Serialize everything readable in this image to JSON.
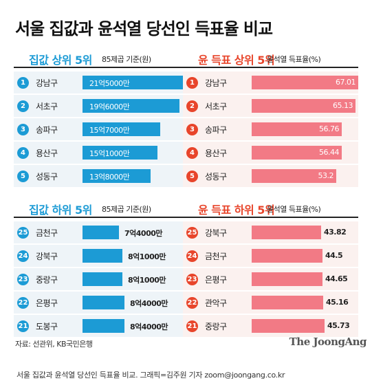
{
  "title": "서울 집값과 윤석열 당선인 득표율 비교",
  "colors": {
    "blue": "#1c9bd5",
    "red": "#e8452b",
    "pink_bar": "#f27a85"
  },
  "chart_data": [
    {
      "type": "bar",
      "title": "집값 상위 5위",
      "unit": "85제곱 기준(원)",
      "categories": [
        "강남구",
        "서초구",
        "송파구",
        "용산구",
        "성동구"
      ],
      "ranks": [
        "1",
        "2",
        "3",
        "4",
        "5"
      ],
      "values": [
        215000,
        196000,
        157000,
        151000,
        138000
      ],
      "value_labels": [
        "21억5000만",
        "19억6000만",
        "15억7000만",
        "15억1000만",
        "13억8000만"
      ],
      "xlim": [
        0,
        215000
      ]
    },
    {
      "type": "bar",
      "title": "윤 득표 상위 5위",
      "unit": "윤석열 득표율(%)",
      "categories": [
        "강남구",
        "서초구",
        "송파구",
        "용산구",
        "성동구"
      ],
      "ranks": [
        "1",
        "2",
        "3",
        "4",
        "5"
      ],
      "values": [
        67.01,
        65.13,
        56.76,
        56.44,
        53.2
      ],
      "value_labels": [
        "67.01",
        "65.13",
        "56.76",
        "56.44",
        "53.2"
      ],
      "xlim": [
        0,
        67.01
      ]
    },
    {
      "type": "bar",
      "title": "집값 하위 5위",
      "unit": "85제곱 기준(원)",
      "categories": [
        "금천구",
        "강북구",
        "중랑구",
        "은평구",
        "도봉구"
      ],
      "ranks": [
        "25",
        "24",
        "23",
        "22",
        "21"
      ],
      "values": [
        74000,
        81000,
        81000,
        84000,
        84000
      ],
      "value_labels": [
        "7억4000만",
        "8억1000만",
        "8억1000만",
        "8억4000만",
        "8억4000만"
      ],
      "xlim": [
        0,
        215000
      ]
    },
    {
      "type": "bar",
      "title": "윤 득표 하위 5위",
      "unit": "윤석열 득표율(%)",
      "categories": [
        "강북구",
        "금천구",
        "은평구",
        "관악구",
        "중랑구"
      ],
      "ranks": [
        "25",
        "24",
        "23",
        "22",
        "21"
      ],
      "values": [
        43.82,
        44.5,
        44.65,
        45.16,
        45.73
      ],
      "value_labels": [
        "43.82",
        "44.5",
        "44.65",
        "45.16",
        "45.73"
      ],
      "xlim": [
        0,
        67.01
      ]
    }
  ],
  "source": "자료: 선관위, KB국민은행",
  "logo": "The JoongAng",
  "caption": "서울 집값과 윤석열 당선인 득표율 비교. 그래픽=김주원 기자 zoom@joongang.co.kr"
}
